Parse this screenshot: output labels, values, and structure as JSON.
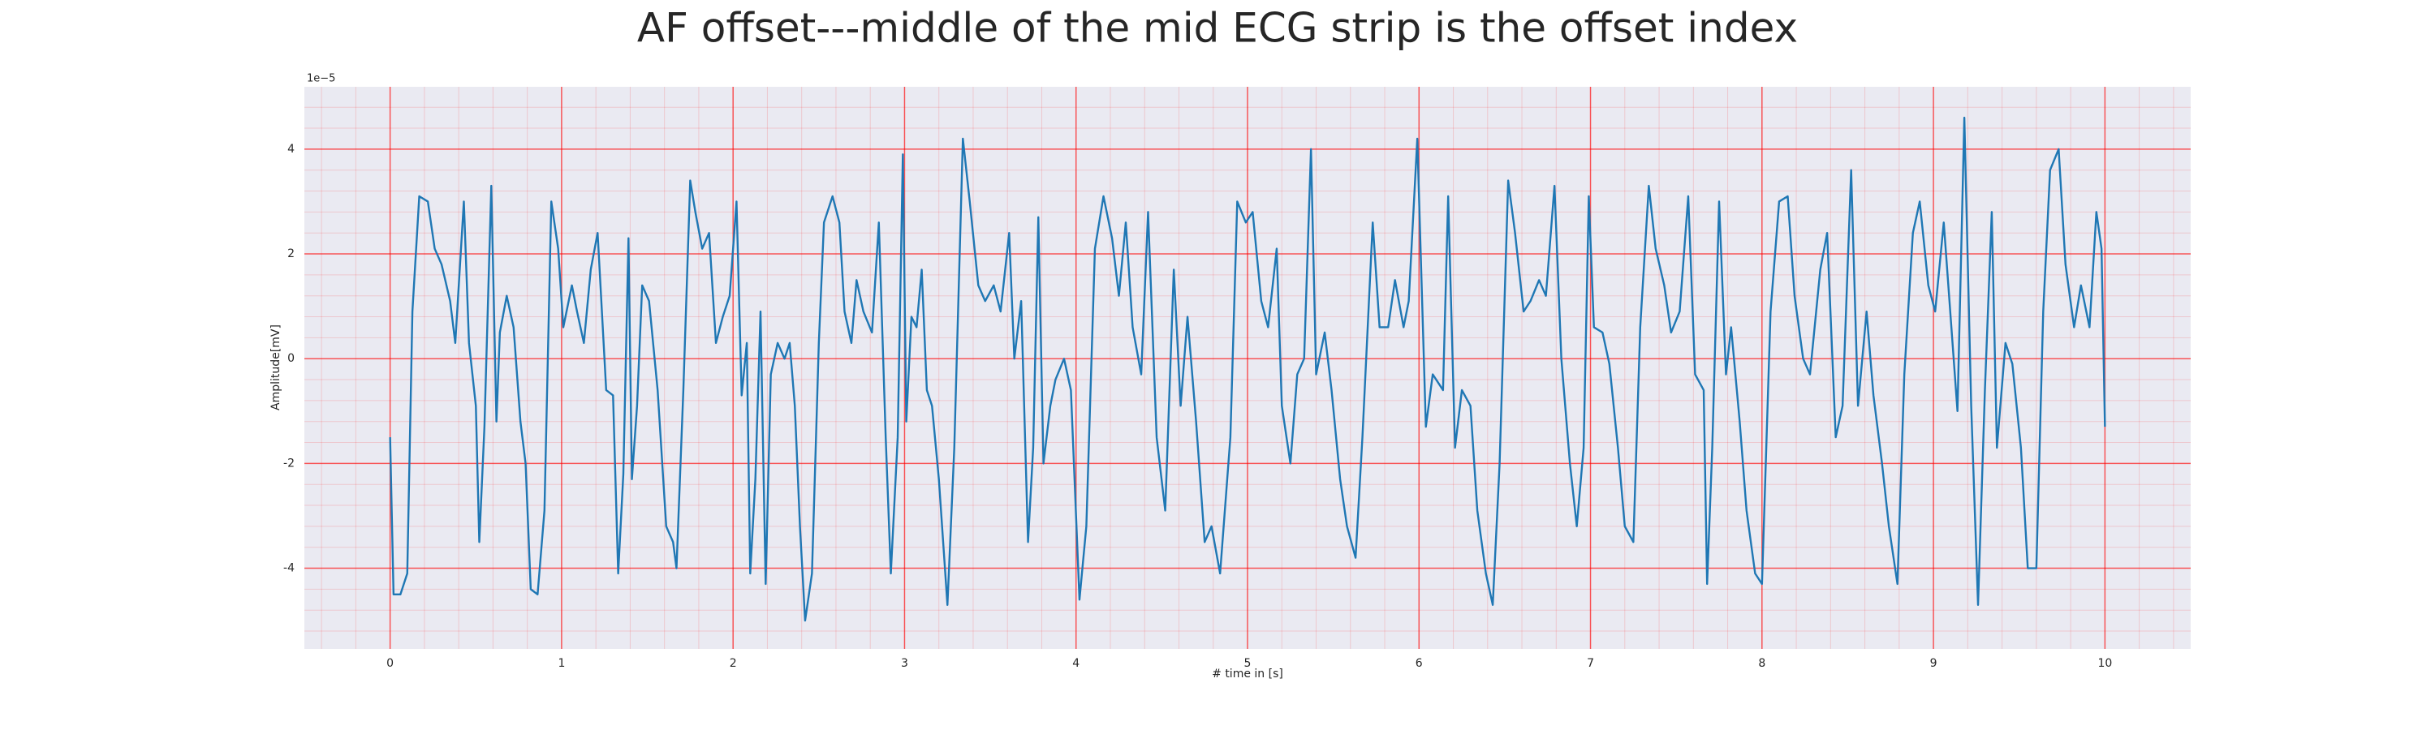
{
  "chart_data": {
    "type": "line",
    "title": "AF offset---middle of the mid ECG strip is the offset index",
    "x_label": "# time in [s]",
    "y_label": "Amplitude[mV]",
    "y_offset_label": "1e−5",
    "xlim": [
      -0.5,
      10.5
    ],
    "ylim": [
      -5.54,
      5.19
    ],
    "xticks": [
      0,
      1,
      2,
      3,
      4,
      5,
      6,
      7,
      8,
      9,
      10
    ],
    "yticks": [
      -4,
      -2,
      0,
      2,
      4
    ],
    "grid": true,
    "minor_grid": true,
    "grid_color": "#ff0000",
    "background": "#eaeaf2",
    "x": [
      0,
      0.02,
      0.06,
      0.1,
      0.13,
      0.17,
      0.22,
      0.26,
      0.3,
      0.35,
      0.38,
      0.43,
      0.46,
      0.5,
      0.52,
      0.55,
      0.59,
      0.62,
      0.64,
      0.68,
      0.72,
      0.76,
      0.79,
      0.82,
      0.86,
      0.9,
      0.94,
      0.98,
      1.01,
      1.06,
      1.09,
      1.13,
      1.17,
      1.21,
      1.26,
      1.3,
      1.33,
      1.36,
      1.39,
      1.41,
      1.44,
      1.47,
      1.51,
      1.56,
      1.61,
      1.65,
      1.67,
      1.71,
      1.75,
      1.78,
      1.82,
      1.86,
      1.9,
      1.94,
      1.98,
      2.02,
      2.05,
      2.08,
      2.1,
      2.13,
      2.16,
      2.19,
      2.22,
      2.26,
      2.3,
      2.33,
      2.36,
      2.39,
      2.42,
      2.46,
      2.5,
      2.53,
      2.58,
      2.62,
      2.65,
      2.69,
      2.72,
      2.76,
      2.81,
      2.85,
      2.89,
      2.92,
      2.96,
      2.99,
      3.01,
      3.04,
      3.07,
      3.1,
      3.13,
      3.16,
      3.2,
      3.25,
      3.29,
      3.34,
      3.38,
      3.43,
      3.47,
      3.52,
      3.56,
      3.61,
      3.64,
      3.68,
      3.72,
      3.75,
      3.78,
      3.81,
      3.85,
      3.88,
      3.93,
      3.97,
      4.02,
      4.06,
      4.11,
      4.16,
      4.21,
      4.25,
      4.29,
      4.33,
      4.38,
      4.42,
      4.47,
      4.52,
      4.57,
      4.61,
      4.65,
      4.7,
      4.75,
      4.79,
      4.84,
      4.9,
      4.94,
      4.99,
      5.03,
      5.08,
      5.12,
      5.17,
      5.2,
      5.25,
      5.29,
      5.33,
      5.37,
      5.4,
      5.45,
      5.49,
      5.54,
      5.58,
      5.63,
      5.67,
      5.73,
      5.77,
      5.82,
      5.86,
      5.91,
      5.94,
      5.99,
      6.04,
      6.08,
      6.14,
      6.17,
      6.21,
      6.25,
      6.3,
      6.34,
      6.39,
      6.43,
      6.47,
      6.52,
      6.56,
      6.61,
      6.65,
      6.7,
      6.74,
      6.79,
      6.83,
      6.88,
      6.92,
      6.96,
      6.99,
      7.02,
      7.07,
      7.11,
      7.16,
      7.2,
      7.25,
      7.29,
      7.34,
      7.38,
      7.43,
      7.47,
      7.52,
      7.57,
      7.61,
      7.66,
      7.68,
      7.71,
      7.75,
      7.79,
      7.82,
      7.87,
      7.91,
      7.96,
      8.0,
      8.05,
      8.1,
      8.15,
      8.19,
      8.24,
      8.28,
      8.34,
      8.38,
      8.43,
      8.47,
      8.52,
      8.56,
      8.61,
      8.65,
      8.7,
      8.74,
      8.79,
      8.83,
      8.88,
      8.92,
      8.97,
      9.01,
      9.06,
      9.1,
      9.14,
      9.18,
      9.22,
      9.26,
      9.3,
      9.34,
      9.37,
      9.42,
      9.46,
      9.51,
      9.55,
      9.6,
      9.64,
      9.68,
      9.73,
      9.77,
      9.82,
      9.86,
      9.91,
      9.95,
      9.98,
      10.0
    ],
    "series": [
      {
        "color": "#1f77b4",
        "values": [
          -1.5,
          -4.5,
          -4.5,
          -4.1,
          0.9,
          3.1,
          3.0,
          2.1,
          1.8,
          1.1,
          0.3,
          3.0,
          0.3,
          -0.9,
          -3.5,
          -1.3,
          3.3,
          -1.2,
          0.5,
          1.2,
          0.6,
          -1.2,
          -2.0,
          -4.4,
          -4.5,
          -2.9,
          3.0,
          2.1,
          0.6,
          1.4,
          0.9,
          0.3,
          1.7,
          2.4,
          -0.6,
          -0.7,
          -4.1,
          -2.2,
          2.3,
          -2.3,
          -0.9,
          1.4,
          1.1,
          -0.6,
          -3.2,
          -3.5,
          -4.0,
          -0.6,
          3.4,
          2.8,
          2.1,
          2.4,
          0.3,
          0.8,
          1.2,
          3.0,
          -0.7,
          0.3,
          -4.1,
          -2.3,
          0.9,
          -4.3,
          -0.3,
          0.3,
          0,
          0.3,
          -0.9,
          -3.2,
          -5.0,
          -4.1,
          0.3,
          2.6,
          3.1,
          2.6,
          0.9,
          0.3,
          1.5,
          0.9,
          0.5,
          2.6,
          -1.5,
          -4.1,
          -1.5,
          3.9,
          -1.2,
          0.8,
          0.6,
          1.7,
          -0.6,
          -0.9,
          -2.3,
          -4.7,
          -1.7,
          4.2,
          3.0,
          1.4,
          1.1,
          1.4,
          0.9,
          2.4,
          0,
          1.1,
          -3.5,
          -1.7,
          2.7,
          -2.0,
          -0.9,
          -0.4,
          0,
          -0.6,
          -4.6,
          -3.2,
          2.1,
          3.1,
          2.3,
          1.2,
          2.6,
          0.6,
          -0.3,
          2.8,
          -1.5,
          -2.9,
          1.7,
          -0.9,
          0.8,
          -1.2,
          -3.5,
          -3.2,
          -4.1,
          -1.5,
          3.0,
          2.6,
          2.8,
          1.1,
          0.6,
          2.1,
          -0.9,
          -2.0,
          -0.3,
          0,
          4.0,
          -0.3,
          0.5,
          -0.6,
          -2.3,
          -3.2,
          -3.8,
          -1.5,
          2.6,
          0.6,
          0.6,
          1.5,
          0.6,
          1.1,
          4.2,
          -1.3,
          -0.3,
          -0.6,
          3.1,
          -1.7,
          -0.6,
          -0.9,
          -2.9,
          -4.1,
          -4.7,
          -2.0,
          3.4,
          2.4,
          0.9,
          1.1,
          1.5,
          1.2,
          3.3,
          0,
          -2.0,
          -3.2,
          -1.7,
          3.1,
          0.6,
          0.5,
          -0.1,
          -1.7,
          -3.2,
          -3.5,
          0.6,
          3.3,
          2.1,
          1.4,
          0.5,
          0.9,
          3.1,
          -0.3,
          -0.6,
          -4.3,
          -1.7,
          3.0,
          -0.3,
          0.6,
          -1.2,
          -2.9,
          -4.1,
          -4.3,
          0.9,
          3.0,
          3.1,
          1.2,
          0,
          -0.3,
          1.7,
          2.4,
          -1.5,
          -0.9,
          3.6,
          -0.9,
          0.9,
          -0.7,
          -2.0,
          -3.2,
          -4.3,
          -0.3,
          2.4,
          3.0,
          1.4,
          0.9,
          2.6,
          0.8,
          -1.0,
          4.6,
          -0.9,
          -4.7,
          -0.6,
          2.8,
          -1.7,
          0.3,
          -0.1,
          -1.7,
          -4.0,
          -4.0,
          0.9,
          3.6,
          4.0,
          1.8,
          0.6,
          1.4,
          0.6,
          2.8,
          2.1,
          -1.3
        ]
      }
    ]
  }
}
